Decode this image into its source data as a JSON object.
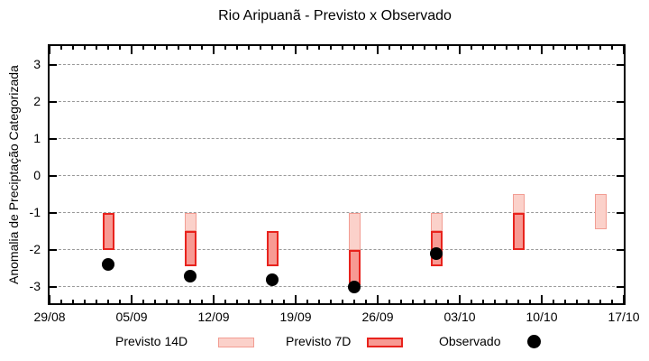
{
  "chart_data": {
    "type": "bar",
    "title": "Rio Aripuanã - Previsto x Observado",
    "ylabel": "Anomalia de Preciptação Categorizada",
    "xlabel": "",
    "x_tick_labels": [
      "29/08",
      "05/09",
      "12/09",
      "19/09",
      "26/09",
      "03/10",
      "10/10",
      "17/10"
    ],
    "x_tick_days": [
      0,
      7,
      14,
      21,
      28,
      35,
      42,
      49
    ],
    "x_range_days": [
      0,
      49
    ],
    "x_minor_tick_interval_days": 1,
    "y_ticks": [
      3,
      2,
      1,
      0,
      -1,
      -2,
      -3
    ],
    "ylim": [
      -3.44,
      3.51
    ],
    "grid": {
      "horizontal": "dashed",
      "color": "#9a9a9a"
    },
    "group_dates": [
      "03/09",
      "10/09",
      "17/09",
      "24/09",
      "01/10",
      "08/10",
      "15/10"
    ],
    "series": [
      {
        "name": "Previsto 14D",
        "type": "range_bar",
        "fill": "#fbd1ca",
        "border": "#f29d93",
        "points": [
          {
            "day": 12,
            "date": "10/09",
            "low": -1.5,
            "high": -1.0
          },
          {
            "day": 26,
            "date": "24/09",
            "low": -2.0,
            "high": -1.0
          },
          {
            "day": 33,
            "date": "01/10",
            "low": -1.5,
            "high": -1.0
          },
          {
            "day": 40,
            "date": "08/10",
            "low": -1.0,
            "high": -0.5
          },
          {
            "day": 47,
            "date": "15/10",
            "low": -1.45,
            "high": -0.5
          }
        ]
      },
      {
        "name": "Previsto 7D",
        "type": "range_bar",
        "fill": "#f79a93",
        "border": "#e8231d",
        "points": [
          {
            "day": 5,
            "date": "03/09",
            "low": -2.0,
            "high": -1.0
          },
          {
            "day": 12,
            "date": "10/09",
            "low": -2.45,
            "high": -1.5
          },
          {
            "day": 19,
            "date": "17/09",
            "low": -2.45,
            "high": -1.5
          },
          {
            "day": 26,
            "date": "24/09",
            "low": -2.95,
            "high": -2.0
          },
          {
            "day": 33,
            "date": "01/10",
            "low": -2.45,
            "high": -1.5
          },
          {
            "day": 40,
            "date": "08/10",
            "low": -2.0,
            "high": -1.0
          }
        ]
      },
      {
        "name": "Observado",
        "type": "scatter",
        "color": "#000000",
        "points": [
          {
            "day": 5,
            "date": "03/09",
            "value": -2.4
          },
          {
            "day": 12,
            "date": "10/09",
            "value": -2.7
          },
          {
            "day": 19,
            "date": "17/09",
            "value": -2.8
          },
          {
            "day": 26,
            "date": "24/09",
            "value": -3.0
          },
          {
            "day": 33,
            "date": "01/10",
            "value": -2.1
          }
        ]
      }
    ],
    "legend": [
      {
        "label": "Previsto 14D",
        "marker": "range_bar_light"
      },
      {
        "label": "Previsto 7D",
        "marker": "range_bar_dark"
      },
      {
        "label": "Observado",
        "marker": "dot"
      }
    ]
  }
}
